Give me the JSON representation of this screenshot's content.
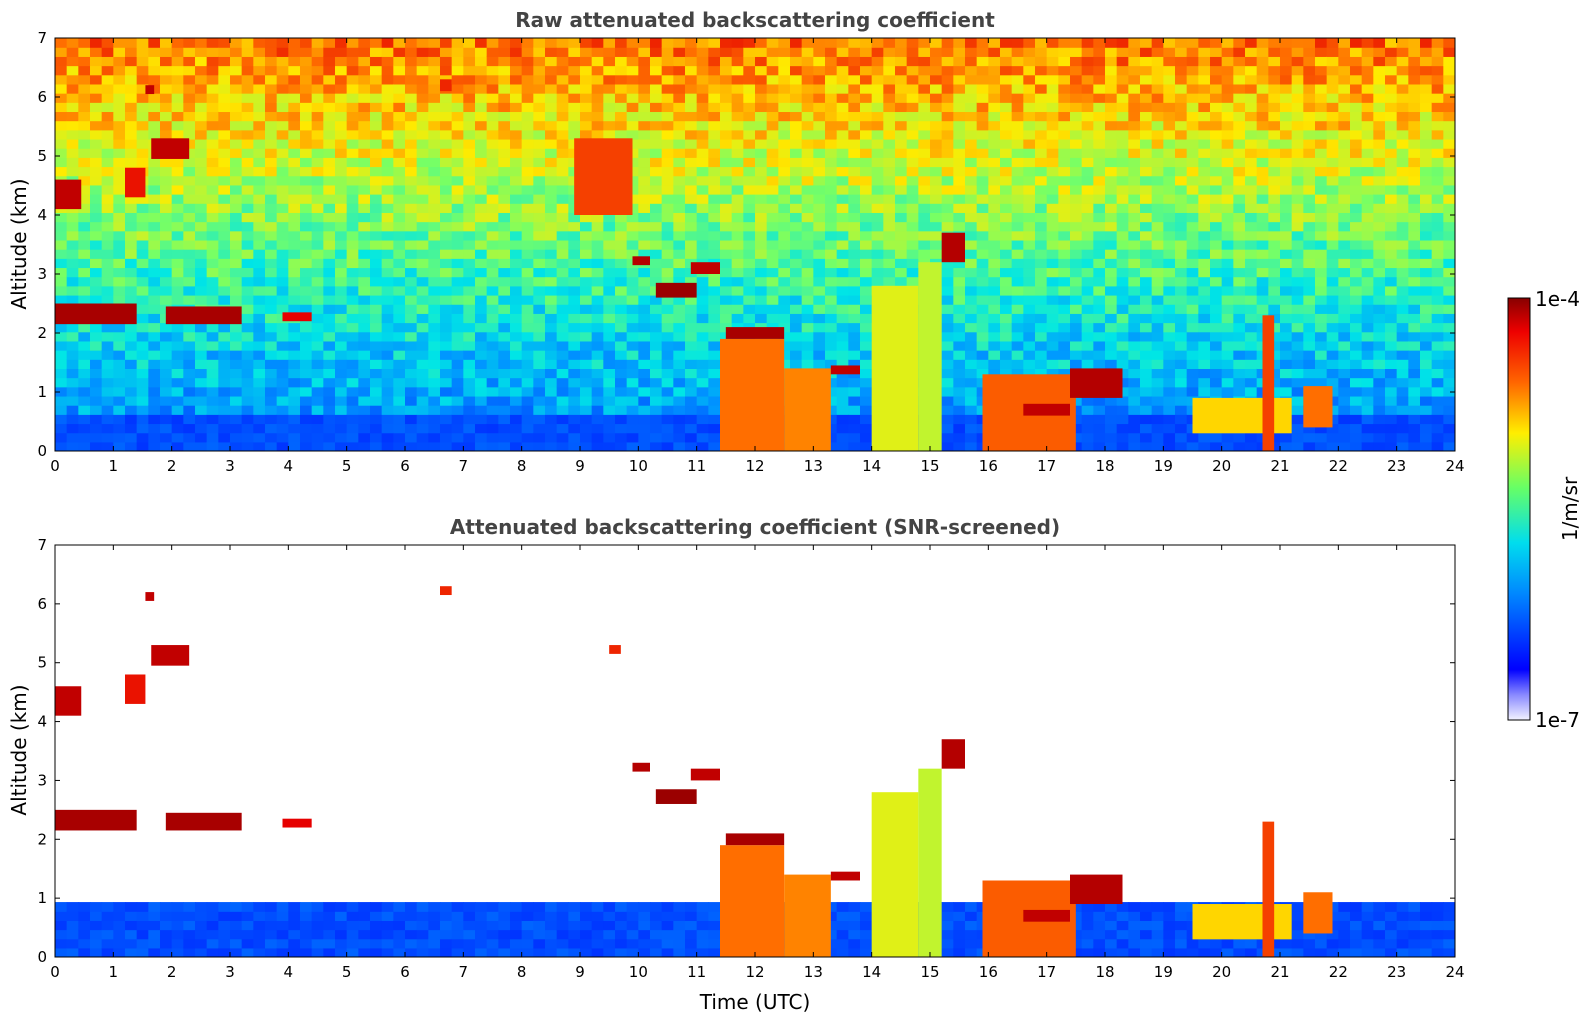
{
  "chart_data": [
    {
      "type": "heatmap",
      "title": "Raw attenuated backscattering coefficient",
      "xlabel": "",
      "ylabel": "Altitude (km)",
      "xlim": [
        0,
        24
      ],
      "ylim": [
        0,
        7
      ],
      "xticks": [
        "0",
        "1",
        "2",
        "3",
        "4",
        "5",
        "6",
        "7",
        "8",
        "9",
        "10",
        "11",
        "12",
        "13",
        "14",
        "15",
        "16",
        "17",
        "18",
        "19",
        "20",
        "21",
        "22",
        "23",
        "24"
      ],
      "yticks": [
        "0",
        "1",
        "2",
        "3",
        "4",
        "5",
        "6",
        "7"
      ],
      "screening": "raw",
      "boundary_layer_top_km": 0.7,
      "features": [
        {
          "t0": 0.0,
          "t1": 0.45,
          "z0": 4.1,
          "z1": 4.6,
          "intensity": 0.95
        },
        {
          "t0": 0.0,
          "t1": 1.4,
          "z0": 2.15,
          "z1": 2.5,
          "intensity": 0.97
        },
        {
          "t0": 1.9,
          "t1": 3.2,
          "z0": 2.15,
          "z1": 2.45,
          "intensity": 0.97
        },
        {
          "t0": 3.9,
          "t1": 4.4,
          "z0": 2.2,
          "z1": 2.35,
          "intensity": 0.92
        },
        {
          "t0": 1.2,
          "t1": 1.55,
          "z0": 4.3,
          "z1": 4.8,
          "intensity": 0.9
        },
        {
          "t0": 1.65,
          "t1": 2.3,
          "z0": 4.95,
          "z1": 5.3,
          "intensity": 0.95
        },
        {
          "t0": 1.55,
          "t1": 1.7,
          "z0": 6.05,
          "z1": 6.2,
          "intensity": 0.95
        },
        {
          "t0": 6.6,
          "t1": 6.8,
          "z0": 6.1,
          "z1": 6.3,
          "intensity": 0.88
        },
        {
          "t0": 8.9,
          "t1": 9.9,
          "z0": 4.0,
          "z1": 5.3,
          "intensity": 0.85
        },
        {
          "t0": 9.9,
          "t1": 10.2,
          "z0": 3.15,
          "z1": 3.3,
          "intensity": 0.96
        },
        {
          "t0": 10.3,
          "t1": 11.0,
          "z0": 2.6,
          "z1": 2.85,
          "intensity": 0.98
        },
        {
          "t0": 10.9,
          "t1": 11.4,
          "z0": 3.0,
          "z1": 3.2,
          "intensity": 0.95
        },
        {
          "t0": 11.4,
          "t1": 12.5,
          "z0": 0.0,
          "z1": 1.9,
          "intensity": 0.8
        },
        {
          "t0": 11.5,
          "t1": 12.5,
          "z0": 1.9,
          "z1": 2.1,
          "intensity": 0.97
        },
        {
          "t0": 12.5,
          "t1": 13.3,
          "z0": 0.0,
          "z1": 1.4,
          "intensity": 0.78
        },
        {
          "t0": 13.3,
          "t1": 13.8,
          "z0": 1.3,
          "z1": 1.45,
          "intensity": 0.95
        },
        {
          "t0": 14.0,
          "t1": 14.8,
          "z0": 0.0,
          "z1": 2.8,
          "intensity": 0.65
        },
        {
          "t0": 14.8,
          "t1": 15.2,
          "z0": 0.0,
          "z1": 3.2,
          "intensity": 0.62
        },
        {
          "t0": 15.2,
          "t1": 15.6,
          "z0": 3.2,
          "z1": 3.7,
          "intensity": 0.96
        },
        {
          "t0": 15.9,
          "t1": 17.5,
          "z0": 0.0,
          "z1": 1.3,
          "intensity": 0.82
        },
        {
          "t0": 16.6,
          "t1": 17.4,
          "z0": 0.6,
          "z1": 0.8,
          "intensity": 0.95
        },
        {
          "t0": 17.4,
          "t1": 18.3,
          "z0": 0.9,
          "z1": 1.4,
          "intensity": 0.96
        },
        {
          "t0": 19.5,
          "t1": 21.2,
          "z0": 0.3,
          "z1": 0.9,
          "intensity": 0.7
        },
        {
          "t0": 20.7,
          "t1": 20.9,
          "z0": 0.0,
          "z1": 2.3,
          "intensity": 0.85
        },
        {
          "t0": 21.4,
          "t1": 21.9,
          "z0": 0.4,
          "z1": 1.1,
          "intensity": 0.8
        }
      ]
    },
    {
      "type": "heatmap",
      "title": "Attenuated backscattering coefficient (SNR-screened)",
      "xlabel": "Time (UTC)",
      "ylabel": "Altitude (km)",
      "xlim": [
        0,
        24
      ],
      "ylim": [
        0,
        7
      ],
      "xticks": [
        "0",
        "1",
        "2",
        "3",
        "4",
        "5",
        "6",
        "7",
        "8",
        "9",
        "10",
        "11",
        "12",
        "13",
        "14",
        "15",
        "16",
        "17",
        "18",
        "19",
        "20",
        "21",
        "22",
        "23",
        "24"
      ],
      "yticks": [
        "0",
        "1",
        "2",
        "3",
        "4",
        "5",
        "6",
        "7"
      ],
      "screening": "SNR-screened",
      "boundary_layer_top_km": 1.0,
      "features": [
        {
          "t0": 0.0,
          "t1": 0.45,
          "z0": 4.1,
          "z1": 4.6,
          "intensity": 0.95
        },
        {
          "t0": 0.0,
          "t1": 1.4,
          "z0": 2.15,
          "z1": 2.5,
          "intensity": 0.97
        },
        {
          "t0": 1.9,
          "t1": 3.2,
          "z0": 2.15,
          "z1": 2.45,
          "intensity": 0.97
        },
        {
          "t0": 3.9,
          "t1": 4.4,
          "z0": 2.2,
          "z1": 2.35,
          "intensity": 0.92
        },
        {
          "t0": 1.2,
          "t1": 1.55,
          "z0": 4.3,
          "z1": 4.8,
          "intensity": 0.9
        },
        {
          "t0": 1.65,
          "t1": 2.3,
          "z0": 4.95,
          "z1": 5.3,
          "intensity": 0.95
        },
        {
          "t0": 1.55,
          "t1": 1.7,
          "z0": 6.05,
          "z1": 6.2,
          "intensity": 0.95
        },
        {
          "t0": 6.6,
          "t1": 6.8,
          "z0": 6.15,
          "z1": 6.3,
          "intensity": 0.88
        },
        {
          "t0": 9.5,
          "t1": 9.7,
          "z0": 5.15,
          "z1": 5.3,
          "intensity": 0.88
        },
        {
          "t0": 9.9,
          "t1": 10.2,
          "z0": 3.15,
          "z1": 3.3,
          "intensity": 0.96
        },
        {
          "t0": 10.3,
          "t1": 11.0,
          "z0": 2.6,
          "z1": 2.85,
          "intensity": 0.98
        },
        {
          "t0": 10.9,
          "t1": 11.4,
          "z0": 3.0,
          "z1": 3.2,
          "intensity": 0.95
        },
        {
          "t0": 11.4,
          "t1": 12.5,
          "z0": 0.0,
          "z1": 1.9,
          "intensity": 0.8
        },
        {
          "t0": 11.5,
          "t1": 12.5,
          "z0": 1.9,
          "z1": 2.1,
          "intensity": 0.97
        },
        {
          "t0": 12.5,
          "t1": 13.3,
          "z0": 0.0,
          "z1": 1.4,
          "intensity": 0.78
        },
        {
          "t0": 13.3,
          "t1": 13.8,
          "z0": 1.3,
          "z1": 1.45,
          "intensity": 0.95
        },
        {
          "t0": 14.0,
          "t1": 14.8,
          "z0": 0.0,
          "z1": 2.8,
          "intensity": 0.65
        },
        {
          "t0": 14.8,
          "t1": 15.2,
          "z0": 0.0,
          "z1": 3.2,
          "intensity": 0.62
        },
        {
          "t0": 15.2,
          "t1": 15.6,
          "z0": 3.2,
          "z1": 3.7,
          "intensity": 0.96
        },
        {
          "t0": 15.9,
          "t1": 17.5,
          "z0": 0.0,
          "z1": 1.3,
          "intensity": 0.82
        },
        {
          "t0": 16.6,
          "t1": 17.4,
          "z0": 0.6,
          "z1": 0.8,
          "intensity": 0.95
        },
        {
          "t0": 17.4,
          "t1": 18.3,
          "z0": 0.9,
          "z1": 1.4,
          "intensity": 0.96
        },
        {
          "t0": 19.5,
          "t1": 21.2,
          "z0": 0.3,
          "z1": 0.9,
          "intensity": 0.7
        },
        {
          "t0": 20.7,
          "t1": 20.9,
          "z0": 0.0,
          "z1": 2.3,
          "intensity": 0.85
        },
        {
          "t0": 21.4,
          "t1": 21.9,
          "z0": 0.4,
          "z1": 1.1,
          "intensity": 0.8
        }
      ]
    }
  ],
  "colorbar": {
    "label": "1/m/sr",
    "max_label": "1e-4",
    "min_label": "1e-7",
    "colormap": "jet",
    "colors": [
      "#ffffff",
      "#0000ff",
      "#00aaff",
      "#00ffcc",
      "#aaff44",
      "#ffee00",
      "#ff8800",
      "#ff0000",
      "#880000"
    ]
  }
}
